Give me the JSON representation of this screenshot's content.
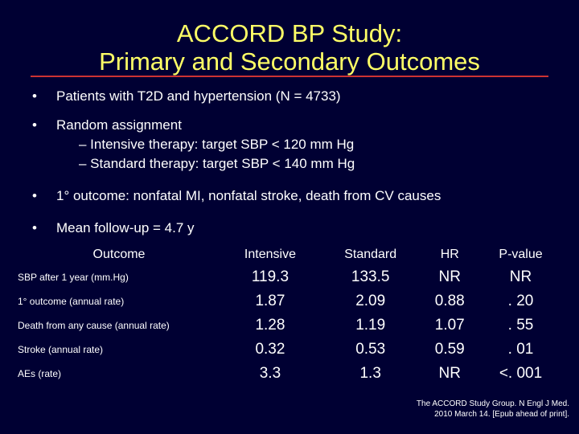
{
  "title": {
    "line1": "ACCORD BP Study:",
    "line2": "Primary and Secondary Outcomes"
  },
  "bullets": {
    "b1": "Patients with T2D and hypertension (N = 4733)",
    "b2": "Random assignment",
    "b2_sub1": "– Intensive therapy: target SBP < 120 mm Hg",
    "b2_sub2": "– Standard therapy: target SBP < 140 mm Hg",
    "b3": "1° outcome: nonfatal MI, nonfatal stroke, death from CV causes",
    "b4": "Mean follow-up = 4.7 y"
  },
  "table": {
    "headers": [
      "Outcome",
      "Intensive",
      "Standard",
      "HR",
      "P-value"
    ],
    "rows": [
      [
        "SBP after 1 year (mm.Hg)",
        "119.3",
        "133.5",
        "NR",
        "NR"
      ],
      [
        "1° outcome (annual rate)",
        "1.87",
        "2.09",
        "0.88",
        ". 20"
      ],
      [
        "Death from any cause (annual rate)",
        "1.28",
        "1.19",
        "1.07",
        ". 55"
      ],
      [
        "Stroke (annual rate)",
        "0.32",
        "0.53",
        "0.59",
        ". 01"
      ],
      [
        "AEs (rate)",
        "3.3",
        "1.3",
        "NR",
        "<. 001"
      ]
    ]
  },
  "citation": {
    "line1": "The ACCORD Study Group. N Engl J Med.",
    "line2": "2010 March 14. [Epub ahead of print]."
  }
}
